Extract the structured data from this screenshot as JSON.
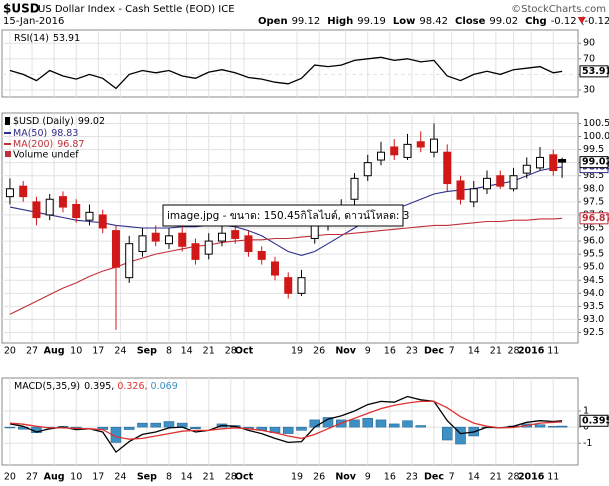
{
  "header": {
    "symbol": "$USD",
    "name": "US Dollar Index - Cash Settle (EOD) ICE",
    "date": "15-Jan-2016",
    "credit": "©StockCharts.com",
    "open_label": "Open",
    "high_label": "High",
    "low_label": "Low",
    "close_label": "Close",
    "change_label": "Chg",
    "change": -0.12,
    "change_pct_label": "(-0.12%)"
  },
  "overlay": {
    "tooltip": "image.jpg - ขนาด: 150.45กิโลไบต์, ดาวน์โหลด: 3"
  },
  "chart_data": [
    {
      "type": "line",
      "label": "RSI(14)",
      "ylim": [
        21,
        107
      ],
      "yticks": [
        30,
        50,
        70,
        90
      ],
      "grid": true,
      "series": [
        {
          "color": "#000000",
          "values": [
            55,
            50,
            42,
            55,
            48,
            44,
            50,
            45,
            32,
            50,
            55,
            52,
            55,
            48,
            45,
            53,
            56,
            52,
            46,
            44,
            40,
            38,
            45,
            62,
            60,
            62,
            68,
            70,
            72,
            68,
            70,
            66,
            68,
            48,
            42,
            50,
            54,
            50,
            56,
            58,
            60,
            52,
            53.91
          ]
        }
      ]
    },
    {
      "type": "candlestick",
      "title": "$USD (Daily)",
      "volume_label": "Volume undef",
      "x": [
        0,
        3,
        6,
        9,
        12,
        15,
        18,
        21,
        24,
        27,
        30,
        33,
        36,
        39,
        42,
        45,
        48,
        51,
        54,
        57,
        60,
        63,
        66,
        69,
        72,
        75,
        78,
        81,
        84,
        87,
        90,
        93,
        96,
        99,
        102,
        105,
        108,
        111,
        114,
        117,
        120,
        123,
        125
      ],
      "open": [
        97.7,
        98.1,
        97.5,
        97.0,
        97.7,
        97.4,
        96.8,
        97.0,
        96.4,
        94.6,
        95.6,
        96.3,
        95.9,
        96.3,
        95.9,
        95.5,
        96.0,
        96.4,
        96.2,
        95.6,
        95.2,
        94.6,
        94.0,
        96.1,
        96.6,
        96.9,
        97.6,
        98.5,
        99.1,
        99.6,
        99.2,
        99.8,
        99.4,
        99.4,
        98.3,
        97.5,
        98.0,
        98.5,
        98.0,
        98.6,
        98.8,
        99.3,
        99.12
      ],
      "high": [
        98.4,
        98.3,
        97.7,
        97.8,
        97.9,
        97.6,
        97.4,
        97.2,
        96.6,
        96.2,
        96.5,
        96.6,
        96.5,
        96.6,
        96.1,
        96.3,
        96.7,
        96.7,
        96.4,
        95.8,
        95.4,
        94.8,
        94.9,
        97.0,
        97.2,
        97.6,
        98.6,
        99.3,
        99.8,
        99.9,
        100.1,
        100.2,
        100.5,
        99.7,
        98.5,
        98.3,
        98.7,
        98.7,
        98.8,
        99.2,
        99.6,
        99.5,
        99.19
      ],
      "low": [
        97.4,
        97.5,
        96.6,
        96.8,
        97.1,
        96.7,
        96.6,
        96.3,
        92.6,
        94.4,
        95.4,
        95.8,
        95.7,
        95.6,
        95.1,
        95.3,
        95.8,
        95.9,
        95.4,
        95.1,
        94.5,
        93.8,
        93.9,
        95.9,
        96.4,
        96.7,
        97.4,
        98.3,
        98.9,
        99.1,
        99.1,
        99.4,
        99.2,
        97.9,
        97.4,
        97.3,
        97.8,
        98.0,
        97.9,
        98.4,
        98.7,
        98.5,
        98.42
      ],
      "close": [
        98.0,
        97.7,
        96.9,
        97.6,
        97.3,
        96.9,
        97.1,
        96.5,
        95.0,
        95.9,
        96.2,
        96.0,
        96.2,
        95.8,
        95.3,
        96.0,
        96.3,
        96.1,
        95.6,
        95.3,
        94.7,
        94.0,
        94.6,
        96.8,
        96.9,
        97.3,
        98.4,
        99.0,
        99.4,
        99.3,
        99.7,
        99.6,
        99.9,
        98.2,
        97.6,
        98.0,
        98.4,
        98.1,
        98.5,
        98.9,
        99.2,
        98.7,
        99.02
      ],
      "series": [
        {
          "name": "MA(50)",
          "color": "#2e2e8c",
          "values": [
            97.3,
            97.2,
            97.1,
            97.0,
            96.9,
            96.8,
            96.75,
            96.7,
            96.6,
            96.55,
            96.5,
            96.5,
            96.5,
            96.55,
            96.55,
            96.6,
            96.6,
            96.55,
            96.4,
            96.2,
            95.9,
            95.6,
            95.45,
            95.6,
            95.9,
            96.2,
            96.5,
            96.8,
            97.0,
            97.2,
            97.4,
            97.6,
            97.8,
            97.9,
            97.95,
            98.0,
            98.1,
            98.2,
            98.3,
            98.5,
            98.7,
            98.8,
            98.83
          ]
        },
        {
          "name": "MA(200)",
          "color": "#c0303a",
          "values": [
            93.2,
            93.45,
            93.7,
            93.95,
            94.2,
            94.4,
            94.65,
            94.85,
            95.0,
            95.2,
            95.35,
            95.5,
            95.6,
            95.7,
            95.8,
            95.85,
            95.95,
            96.0,
            96.05,
            96.05,
            96.1,
            96.1,
            96.15,
            96.2,
            96.25,
            96.25,
            96.3,
            96.35,
            96.4,
            96.45,
            96.5,
            96.55,
            96.6,
            96.6,
            96.65,
            96.7,
            96.75,
            96.75,
            96.8,
            96.8,
            96.85,
            96.85,
            96.87
          ]
        }
      ],
      "xlim": [
        -1.8,
        128.6
      ],
      "ylim": [
        92.1,
        100.9
      ],
      "grid": true,
      "yticks": [
        92.5,
        {
          "value": 93,
          "label": "93.0"
        },
        93.5,
        {
          "value": 94,
          "label": "94.0"
        },
        94.5,
        {
          "value": 95,
          "label": "95.0"
        },
        95.5,
        {
          "value": 96,
          "label": "96.0"
        },
        96.5,
        {
          "value": 97,
          "label": "97.0"
        },
        97.5,
        {
          "value": 98,
          "label": "98.0"
        },
        98.5,
        {
          "value": 99,
          "label": "99.0"
        },
        99.5,
        {
          "value": 100,
          "label": "100.0"
        },
        100.5
      ],
      "xticks": [
        {
          "value": 0,
          "label": "20"
        },
        {
          "value": 5,
          "label": "27"
        },
        {
          "value": 10,
          "label": "Aug"
        },
        {
          "value": 15,
          "label": "10"
        },
        {
          "value": 20,
          "label": "17"
        },
        {
          "value": 25,
          "label": "24"
        },
        {
          "value": 31,
          "label": "Sep"
        },
        {
          "value": 36,
          "label": "8"
        },
        {
          "value": 40,
          "label": "14"
        },
        {
          "value": 45,
          "label": "21"
        },
        {
          "value": 50,
          "label": "28"
        },
        {
          "value": 53,
          "label": "Oct"
        },
        {
          "value": 65,
          "label": "19"
        },
        {
          "value": 70,
          "label": "26"
        },
        {
          "value": 76,
          "label": "Nov"
        },
        {
          "value": 81,
          "label": "9"
        },
        {
          "value": 86,
          "label": "16"
        },
        {
          "value": 91,
          "label": "23"
        },
        {
          "value": 96,
          "label": "Dec"
        },
        {
          "value": 100,
          "label": "7"
        },
        {
          "value": 105,
          "label": "14"
        },
        {
          "value": 110,
          "label": "21"
        },
        {
          "value": 114,
          "label": "28"
        },
        {
          "value": 118,
          "label": "2016"
        },
        {
          "value": 123,
          "label": "11"
        }
      ]
    },
    {
      "type": "line",
      "label": "MACD(5,35,9)",
      "ylim": [
        -2.35,
        3.05
      ],
      "yticks": [
        -1,
        0,
        1
      ],
      "grid": true,
      "series": [
        {
          "color": "#000000",
          "values": [
            0.2,
            0.05,
            -0.3,
            -0.1,
            0,
            -0.15,
            -0.1,
            -0.3,
            -1.55,
            -0.9,
            -0.45,
            -0.3,
            -0.05,
            0,
            -0.3,
            -0.2,
            0.1,
            0.05,
            -0.2,
            -0.4,
            -0.7,
            -0.95,
            -0.9,
            0,
            0.5,
            0.7,
            1.0,
            1.4,
            1.6,
            1.55,
            1.9,
            1.7,
            1.6,
            0.4,
            -0.4,
            -0.3,
            0,
            -0.05,
            0.05,
            0.3,
            0.4,
            0.35,
            0.395
          ]
        },
        {
          "color": "#e03030",
          "values": [
            0.25,
            0.18,
            0.05,
            -0.05,
            -0.05,
            -0.08,
            -0.1,
            -0.15,
            -0.6,
            -0.75,
            -0.7,
            -0.55,
            -0.4,
            -0.25,
            -0.2,
            -0.2,
            -0.1,
            -0.05,
            -0.1,
            -0.2,
            -0.35,
            -0.55,
            -0.7,
            -0.45,
            -0.1,
            0.25,
            0.55,
            0.85,
            1.15,
            1.35,
            1.5,
            1.6,
            1.6,
            1.2,
            0.65,
            0.25,
            0.05,
            -0.05,
            -0.02,
            0.1,
            0.25,
            0.3,
            0.326
          ]
        },
        {
          "type": "bar",
          "color": "#3d8fc4",
          "values": [
            -0.05,
            -0.13,
            -0.35,
            -0.05,
            0.05,
            -0.07,
            0,
            -0.15,
            -0.95,
            -0.15,
            0.25,
            0.25,
            0.35,
            0.25,
            -0.1,
            0,
            0.2,
            0.1,
            -0.1,
            -0.2,
            -0.35,
            -0.4,
            -0.2,
            0.45,
            0.6,
            0.45,
            0.45,
            0.55,
            0.45,
            0.2,
            0.4,
            0.1,
            0,
            -0.8,
            -1.05,
            -0.55,
            -0.05,
            0,
            0.07,
            0.2,
            0.15,
            0.05,
            0.069
          ]
        }
      ]
    }
  ]
}
